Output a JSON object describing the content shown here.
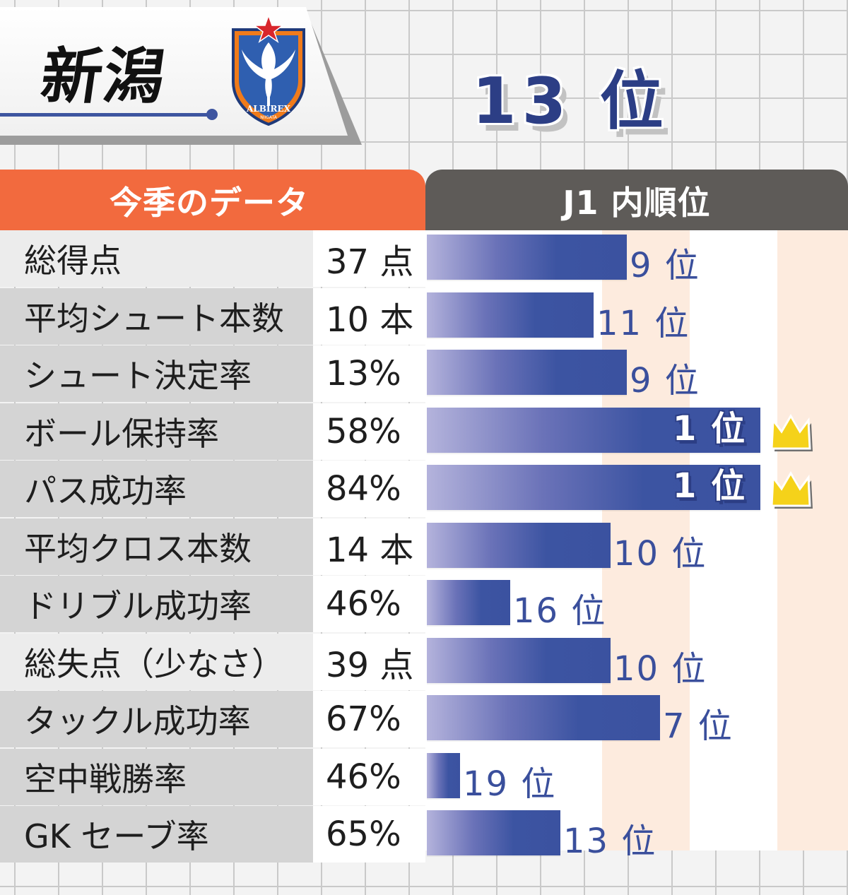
{
  "header": {
    "team_name": "新潟",
    "overall_rank": "13 位",
    "emblem_text": "ALBIREX",
    "emblem_subtext": "NIIGATA"
  },
  "tabs": {
    "left": "今季のデータ",
    "right": "J1 内順位"
  },
  "colors": {
    "accent_orange": "#f26a3e",
    "header_gray": "#5e5b58",
    "bar_blue": "#3b52a0",
    "crown_gold": "#f5d21a"
  },
  "chart_data": {
    "type": "bar",
    "orientation": "horizontal",
    "total_teams": 20,
    "value_axis": "rank (1 = best), bar length grows as rank improves",
    "categories": [
      "総得点",
      "平均シュート本数",
      "シュート決定率",
      "ボール保持率",
      "パス成功率",
      "平均クロス本数",
      "ドリブル成功率",
      "総失点（少なさ）",
      "タックル成功率",
      "空中戦勝率",
      "GK セーブ率"
    ],
    "stats": [
      "37 点",
      "10 本",
      "13%",
      "58%",
      "84%",
      "14 本",
      "46%",
      "39 点",
      "67%",
      "46%",
      "65%"
    ],
    "ranks": [
      9,
      11,
      9,
      1,
      1,
      10,
      16,
      10,
      7,
      19,
      13
    ],
    "rank_labels": [
      "9 位",
      "11 位",
      "9 位",
      "1 位",
      "1 位",
      "10 位",
      "16 位",
      "10 位",
      "7 位",
      "19 位",
      "13 位"
    ],
    "crowned": [
      false,
      false,
      false,
      true,
      true,
      false,
      false,
      false,
      false,
      false,
      false
    ],
    "label_shade": [
      "light",
      "dark",
      "dark",
      "dark",
      "dark",
      "dark",
      "dark",
      "light",
      "dark",
      "dark",
      "dark"
    ]
  }
}
